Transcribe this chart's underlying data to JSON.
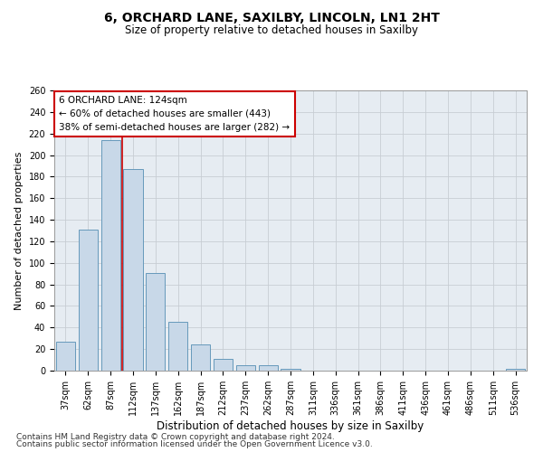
{
  "title1": "6, ORCHARD LANE, SAXILBY, LINCOLN, LN1 2HT",
  "title2": "Size of property relative to detached houses in Saxilby",
  "xlabel": "Distribution of detached houses by size in Saxilby",
  "ylabel": "Number of detached properties",
  "footnote1": "Contains HM Land Registry data © Crown copyright and database right 2024.",
  "footnote2": "Contains public sector information licensed under the Open Government Licence v3.0.",
  "categories": [
    "37sqm",
    "62sqm",
    "87sqm",
    "112sqm",
    "137sqm",
    "162sqm",
    "187sqm",
    "212sqm",
    "237sqm",
    "262sqm",
    "287sqm",
    "311sqm",
    "336sqm",
    "361sqm",
    "386sqm",
    "411sqm",
    "436sqm",
    "461sqm",
    "486sqm",
    "511sqm",
    "536sqm"
  ],
  "values": [
    27,
    131,
    214,
    187,
    91,
    45,
    24,
    11,
    5,
    5,
    2,
    0,
    0,
    0,
    0,
    0,
    0,
    0,
    0,
    0,
    2
  ],
  "bar_color": "#c8d8e8",
  "bar_edge_color": "#6699bb",
  "grid_color": "#c8cdd4",
  "bg_color": "#e6ecf2",
  "vline_color": "#cc0000",
  "vline_x": 2.5,
  "annotation_text": "6 ORCHARD LANE: 124sqm\n← 60% of detached houses are smaller (443)\n38% of semi-detached houses are larger (282) →",
  "annotation_box_facecolor": "#ffffff",
  "annotation_box_edgecolor": "#cc0000",
  "ylim": [
    0,
    260
  ],
  "yticks": [
    0,
    20,
    40,
    60,
    80,
    100,
    120,
    140,
    160,
    180,
    200,
    220,
    240,
    260
  ],
  "title1_fontsize": 10,
  "title2_fontsize": 8.5,
  "ylabel_fontsize": 8,
  "xlabel_fontsize": 8.5,
  "tick_fontsize": 7,
  "annot_fontsize": 7.5,
  "footnote_fontsize": 6.5,
  "bar_width": 0.85
}
